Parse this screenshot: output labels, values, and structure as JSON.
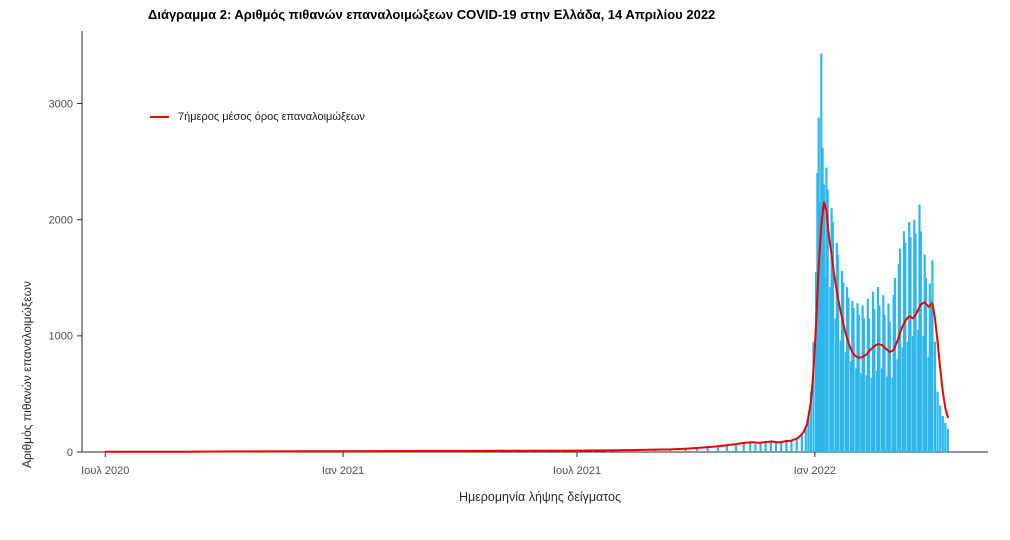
{
  "chart_data": {
    "type": "bar",
    "title": "Διάγραμμα 2: Αριθμός πιθανών επαναλοιμώξεων COVID-19 στην Ελλάδα, 14 Απριλίου 2022",
    "xlabel": "Ημερομηνία λήψης δείγματος",
    "ylabel": "Αριθμός πιθανών επαναλοιμώξεων",
    "x_unit": "days_since_2020-07-01",
    "xlim": [
      -18,
      683
    ],
    "ylim": [
      0,
      3590
    ],
    "grid": false,
    "legend_position": "inside-top-left",
    "yticks": [
      0,
      1000,
      2000,
      3000
    ],
    "xticks": [
      {
        "day": 0,
        "label": "Ιουλ 2020"
      },
      {
        "day": 184,
        "label": "Ιαν 2021"
      },
      {
        "day": 365,
        "label": "Ιουλ 2021"
      },
      {
        "day": 549,
        "label": "Ιαν 2022"
      }
    ],
    "series": [
      {
        "type": "bar",
        "color": "#2FB6EA",
        "points": [
          [
            0,
            2
          ],
          [
            10,
            1
          ],
          [
            20,
            2
          ],
          [
            30,
            2
          ],
          [
            40,
            3
          ],
          [
            50,
            2
          ],
          [
            60,
            3
          ],
          [
            70,
            2
          ],
          [
            80,
            4
          ],
          [
            90,
            3
          ],
          [
            100,
            4
          ],
          [
            110,
            5
          ],
          [
            120,
            4
          ],
          [
            130,
            5
          ],
          [
            140,
            6
          ],
          [
            150,
            5
          ],
          [
            160,
            6
          ],
          [
            170,
            7
          ],
          [
            184,
            8
          ],
          [
            196,
            6
          ],
          [
            208,
            8
          ],
          [
            220,
            7
          ],
          [
            232,
            9
          ],
          [
            244,
            8
          ],
          [
            256,
            9
          ],
          [
            268,
            8
          ],
          [
            280,
            9
          ],
          [
            292,
            10
          ],
          [
            304,
            9
          ],
          [
            316,
            10
          ],
          [
            328,
            11
          ],
          [
            340,
            10
          ],
          [
            352,
            12
          ],
          [
            365,
            12
          ],
          [
            377,
            13
          ],
          [
            389,
            14
          ],
          [
            401,
            15
          ],
          [
            413,
            17
          ],
          [
            425,
            19
          ],
          [
            437,
            22
          ],
          [
            449,
            27
          ],
          [
            458,
            33
          ],
          [
            466,
            40
          ],
          [
            474,
            48
          ],
          [
            481,
            58
          ],
          [
            488,
            68
          ],
          [
            494,
            80
          ],
          [
            499,
            92
          ],
          [
            503,
            70
          ],
          [
            507,
            85
          ],
          [
            511,
            95
          ],
          [
            515,
            100
          ],
          [
            519,
            78
          ],
          [
            523,
            90
          ],
          [
            527,
            105
          ],
          [
            531,
            95
          ],
          [
            535,
            125
          ],
          [
            539,
            160
          ],
          [
            542,
            210
          ],
          [
            544,
            290
          ],
          [
            546,
            520
          ],
          [
            548,
            950
          ],
          [
            550,
            1550
          ],
          [
            551,
            2400
          ],
          [
            552,
            2880
          ],
          [
            553,
            2150
          ],
          [
            554,
            3430
          ],
          [
            555,
            2620
          ],
          [
            556,
            2300
          ],
          [
            557,
            1500
          ],
          [
            558,
            2450
          ],
          [
            559,
            2260
          ],
          [
            561,
            1420
          ],
          [
            562,
            2100
          ],
          [
            563,
            1980
          ],
          [
            565,
            1150
          ],
          [
            566,
            1800
          ],
          [
            567,
            1700
          ],
          [
            569,
            960
          ],
          [
            570,
            1560
          ],
          [
            571,
            1460
          ],
          [
            573,
            860
          ],
          [
            574,
            1420
          ],
          [
            575,
            1330
          ],
          [
            577,
            780
          ],
          [
            578,
            1300
          ],
          [
            579,
            1240
          ],
          [
            581,
            720
          ],
          [
            582,
            1280
          ],
          [
            583,
            1180
          ],
          [
            585,
            680
          ],
          [
            586,
            1260
          ],
          [
            587,
            1150
          ],
          [
            589,
            660
          ],
          [
            590,
            1320
          ],
          [
            591,
            1150
          ],
          [
            593,
            640
          ],
          [
            594,
            1380
          ],
          [
            595,
            1230
          ],
          [
            597,
            700
          ],
          [
            598,
            1420
          ],
          [
            599,
            1260
          ],
          [
            601,
            720
          ],
          [
            602,
            1350
          ],
          [
            603,
            1180
          ],
          [
            605,
            650
          ],
          [
            606,
            1280
          ],
          [
            607,
            1120
          ],
          [
            609,
            640
          ],
          [
            610,
            1350
          ],
          [
            611,
            1500
          ],
          [
            613,
            800
          ],
          [
            614,
            1620
          ],
          [
            615,
            1750
          ],
          [
            617,
            900
          ],
          [
            618,
            1900
          ],
          [
            619,
            1800
          ],
          [
            621,
            950
          ],
          [
            622,
            1980
          ],
          [
            623,
            1850
          ],
          [
            625,
            1000
          ],
          [
            626,
            2000
          ],
          [
            627,
            1880
          ],
          [
            629,
            1050
          ],
          [
            630,
            2130
          ],
          [
            631,
            1900
          ],
          [
            633,
            1000
          ],
          [
            634,
            1700
          ],
          [
            635,
            1500
          ],
          [
            637,
            820
          ],
          [
            638,
            1450
          ],
          [
            639,
            1300
          ],
          [
            640,
            1650
          ],
          [
            642,
            950
          ],
          [
            644,
            520
          ],
          [
            646,
            400
          ],
          [
            648,
            310
          ],
          [
            650,
            250
          ],
          [
            652,
            200
          ]
        ]
      },
      {
        "name": "7ήμερος μέσος όρος επαναλοιμώξεων",
        "type": "line",
        "color": "#EE0000",
        "points": [
          [
            0,
            2
          ],
          [
            30,
            3
          ],
          [
            60,
            3
          ],
          [
            90,
            4
          ],
          [
            120,
            5
          ],
          [
            150,
            6
          ],
          [
            184,
            7
          ],
          [
            214,
            8
          ],
          [
            244,
            9
          ],
          [
            274,
            9
          ],
          [
            304,
            10
          ],
          [
            334,
            11
          ],
          [
            365,
            12
          ],
          [
            390,
            14
          ],
          [
            415,
            18
          ],
          [
            437,
            22
          ],
          [
            449,
            28
          ],
          [
            460,
            36
          ],
          [
            470,
            45
          ],
          [
            480,
            57
          ],
          [
            488,
            68
          ],
          [
            495,
            80
          ],
          [
            501,
            84
          ],
          [
            506,
            78
          ],
          [
            511,
            86
          ],
          [
            516,
            90
          ],
          [
            521,
            82
          ],
          [
            526,
            92
          ],
          [
            531,
            98
          ],
          [
            536,
            120
          ],
          [
            540,
            165
          ],
          [
            543,
            240
          ],
          [
            546,
            430
          ],
          [
            548,
            700
          ],
          [
            550,
            1100
          ],
          [
            552,
            1600
          ],
          [
            554,
            1950
          ],
          [
            556,
            2150
          ],
          [
            558,
            2080
          ],
          [
            560,
            1850
          ],
          [
            562,
            1700
          ],
          [
            564,
            1520
          ],
          [
            566,
            1380
          ],
          [
            568,
            1260
          ],
          [
            570,
            1160
          ],
          [
            572,
            1060
          ],
          [
            574,
            980
          ],
          [
            576,
            910
          ],
          [
            578,
            860
          ],
          [
            580,
            830
          ],
          [
            583,
            810
          ],
          [
            586,
            820
          ],
          [
            589,
            840
          ],
          [
            592,
            880
          ],
          [
            595,
            910
          ],
          [
            598,
            930
          ],
          [
            601,
            920
          ],
          [
            604,
            890
          ],
          [
            607,
            860
          ],
          [
            610,
            880
          ],
          [
            613,
            960
          ],
          [
            616,
            1060
          ],
          [
            619,
            1130
          ],
          [
            622,
            1170
          ],
          [
            625,
            1150
          ],
          [
            628,
            1200
          ],
          [
            631,
            1270
          ],
          [
            634,
            1290
          ],
          [
            637,
            1250
          ],
          [
            640,
            1280
          ],
          [
            642,
            1150
          ],
          [
            644,
            950
          ],
          [
            646,
            720
          ],
          [
            648,
            520
          ],
          [
            650,
            380
          ],
          [
            652,
            300
          ]
        ]
      }
    ]
  }
}
